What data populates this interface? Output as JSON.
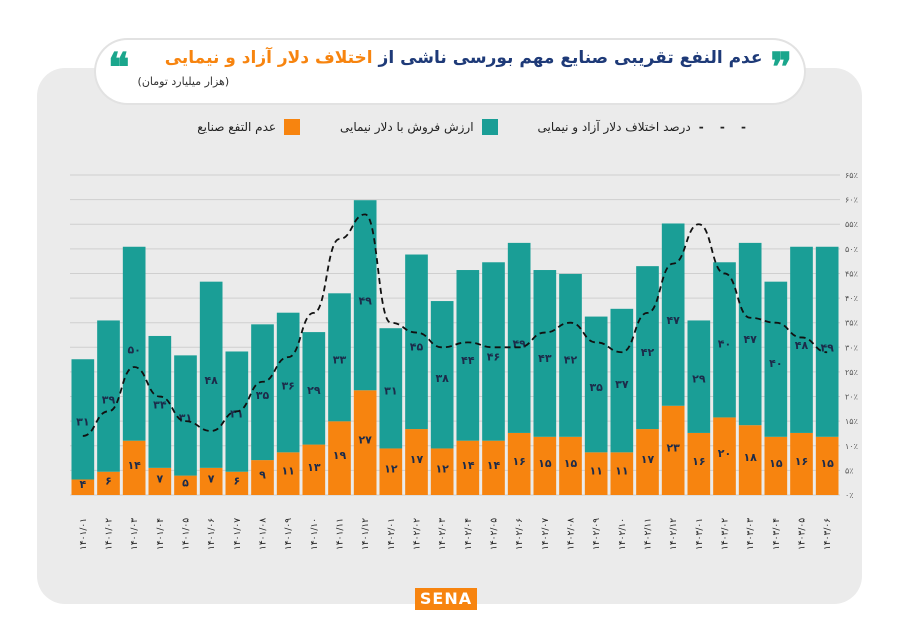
{
  "header": {
    "title_part1": "عدم النفع تقریبی صنایع مهم بورسی ناشی از ",
    "title_part2": "اختلاف دلار آزاد و نیمایی",
    "subtitle": "(هزار میلیارد تومان)"
  },
  "logo": "SENA",
  "colors": {
    "teal": "#1a9e96",
    "orange": "#f7840f",
    "line": "#111111",
    "title": "#1e3a78"
  },
  "chart_data": {
    "type": "bar",
    "stacked": true,
    "legend": {
      "line": "درصد اختلاف دلار آزاد و نیمایی",
      "teal": "ارزش فروش با دلار نیمایی",
      "orange": "عدم التفع صنایع"
    },
    "legend_placement": "top",
    "grid": true,
    "categories": [
      "۱۴۰۱/۰۱",
      "۱۴۰۱/۰۲",
      "۱۴۰۱/۰۳",
      "۱۴۰۱/۰۴",
      "۱۴۰۱/۰۵",
      "۱۴۰۱/۰۶",
      "۱۴۰۱/۰۷",
      "۱۴۰۱/۰۸",
      "۱۴۰۱/۰۹",
      "۱۴۰۱/۱۰",
      "۱۴۰۱/۱۱",
      "۱۴۰۱/۱۲",
      "۱۴۰۲/۰۱",
      "۱۴۰۲/۰۲",
      "۱۴۰۲/۰۳",
      "۱۴۰۲/۰۴",
      "۱۴۰۲/۰۵",
      "۱۴۰۲/۰۶",
      "۱۴۰۲/۰۷",
      "۱۴۰۲/۰۸",
      "۱۴۰۲/۰۹",
      "۱۴۰۲/۱۰",
      "۱۴۰۲/۱۱",
      "۱۴۰۲/۱۲",
      "۱۴۰۳/۰۱",
      "۱۴۰۳/۰۲",
      "۱۴۰۳/۰۳",
      "۱۴۰۳/۰۴",
      "۱۴۰۳/۰۵",
      "۱۴۰۳/۰۶"
    ],
    "series": [
      {
        "name": "عدم التفع صنایع",
        "values": [
          4,
          6,
          14,
          7,
          5,
          7,
          6,
          9,
          11,
          13,
          19,
          27,
          12,
          17,
          12,
          14,
          14,
          16,
          15,
          15,
          11,
          11,
          17,
          23,
          16,
          20,
          18,
          15,
          16,
          15
        ]
      },
      {
        "name": "ارزش فروش با دلار نیمایی",
        "values": [
          31,
          39,
          50,
          34,
          31,
          48,
          31,
          35,
          36,
          29,
          33,
          49,
          31,
          45,
          38,
          44,
          46,
          49,
          43,
          42,
          35,
          37,
          42,
          47,
          29,
          40,
          47,
          40,
          48,
          49
        ]
      },
      {
        "name": "درصد اختلاف دلار آزاد و نیمایی",
        "axis": "right",
        "values": [
          12,
          17,
          26,
          20,
          15,
          13,
          17,
          23,
          28,
          37,
          52,
          57,
          35,
          33,
          30,
          31,
          30,
          30,
          33,
          35,
          31,
          29,
          37,
          47,
          55,
          45,
          36,
          35,
          32,
          29
        ]
      }
    ],
    "right_axis": {
      "ticks": [
        "۰٪",
        "۵٪",
        "۱۰٪",
        "۱۵٪",
        "۲۰٪",
        "۲۵٪",
        "۳۰٪",
        "۳۵٪",
        "۴۰٪",
        "۴۵٪",
        "۵۰٪",
        "۵۵٪",
        "۶۰٪",
        "۶۵٪"
      ],
      "ylim": [
        0,
        65
      ]
    },
    "bar_ylim": [
      0,
      82.5
    ]
  }
}
